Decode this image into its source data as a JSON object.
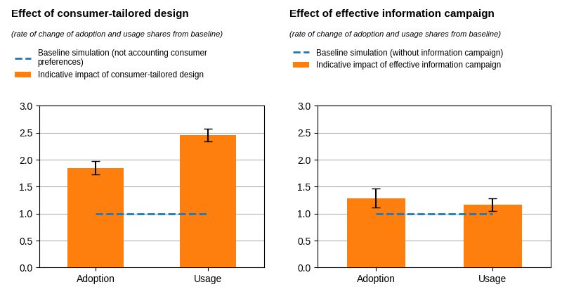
{
  "chart_data": [
    {
      "type": "bar",
      "title": "Effect of consumer-tailored design",
      "subtitle": "(rate of change of adoption and usage shares from baseline)",
      "categories": [
        "Adoption",
        "Usage"
      ],
      "series": [
        {
          "name": "Baseline simulation (not accounting consumer\npreferences)",
          "type": "line",
          "line_style": "dashed",
          "values": [
            1.0,
            1.0
          ]
        },
        {
          "name": "Indicative impact of consumer-tailored design",
          "type": "bar",
          "values": [
            1.85,
            2.46
          ],
          "errors": [
            0.12,
            0.12
          ]
        }
      ],
      "ylim": [
        0,
        3.0
      ],
      "yticks": [
        {
          "value": 0.0,
          "label": "0.0"
        },
        0.5,
        {
          "value": 1.0,
          "label": "1.0"
        },
        1.5,
        {
          "value": 2.0,
          "label": "2.0"
        },
        2.5,
        {
          "value": 3.0,
          "label": "3.0"
        }
      ],
      "grid": true,
      "legend": "upper left"
    },
    {
      "type": "bar",
      "title": "Effect of effective information campaign",
      "subtitle": "(rate of change of adoption and usage shares from baseline)",
      "categories": [
        "Adoption",
        "Usage"
      ],
      "series": [
        {
          "name": "Baseline simulation (without information campaign)",
          "type": "line",
          "line_style": "dashed",
          "values": [
            1.0,
            1.0
          ]
        },
        {
          "name": "Indicative impact of effective information campaign",
          "type": "bar",
          "values": [
            1.29,
            1.17
          ],
          "errors": [
            0.17,
            0.12
          ]
        }
      ],
      "ylim": [
        0,
        3.0
      ],
      "yticks": [
        {
          "value": 0.0,
          "label": "0.0"
        },
        0.5,
        {
          "value": 1.0,
          "label": "1.0"
        },
        1.5,
        {
          "value": 2.0,
          "label": "2.0"
        },
        2.5,
        {
          "value": 3.0,
          "label": "3.0"
        }
      ],
      "grid": true,
      "legend": "upper left"
    }
  ]
}
